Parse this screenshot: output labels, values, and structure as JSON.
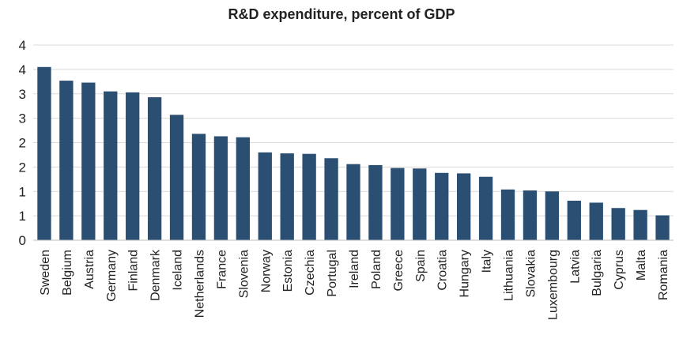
{
  "chart_data": {
    "type": "bar",
    "title": "R&D expenditure, percent of GDP",
    "xlabel": "",
    "ylabel": "",
    "ylim": [
      0,
      4.0
    ],
    "y_tick_values": [
      0,
      0.5,
      1.0,
      1.5,
      2.0,
      2.5,
      3.0,
      3.5,
      4.0
    ],
    "y_tick_labels": [
      "0",
      "1",
      "1",
      "2",
      "2",
      "3",
      "3",
      "4",
      "4"
    ],
    "grid": true,
    "legend": "none",
    "bar_color": "#2b4f72",
    "categories": [
      "Sweden",
      "Belgium",
      "Austria",
      "Germany",
      "Finland",
      "Denmark",
      "Iceland",
      "Netherlands",
      "France",
      "Slovenia",
      "Norway",
      "Estonia",
      "Czechia",
      "Portugal",
      "Ireland",
      "Poland",
      "Greece",
      "Spain",
      "Croatia",
      "Hungary",
      "Italy",
      "Lithuania",
      "Slovakia",
      "Luxembourg",
      "Latvia",
      "Bulgaria",
      "Cyprus",
      "Malta",
      "Romania"
    ],
    "values": [
      3.55,
      3.27,
      3.23,
      3.05,
      3.03,
      2.93,
      2.57,
      2.18,
      2.13,
      2.11,
      1.8,
      1.78,
      1.77,
      1.68,
      1.56,
      1.54,
      1.48,
      1.47,
      1.38,
      1.37,
      1.3,
      1.04,
      1.02,
      1.0,
      0.81,
      0.77,
      0.66,
      0.62,
      0.51
    ]
  }
}
